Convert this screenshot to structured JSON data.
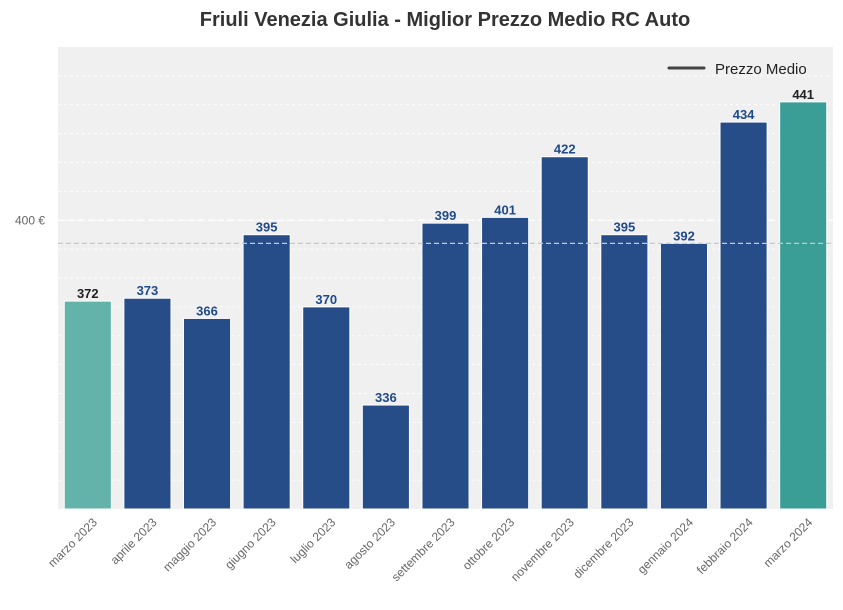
{
  "chart_data": {
    "type": "bar",
    "title": "Friuli Venezia Giulia - Miglior Prezzo Medio RC Auto",
    "categories": [
      "marzo 2023",
      "aprile 2023",
      "maggio 2023",
      "giugno 2023",
      "luglio 2023",
      "agosto 2023",
      "settembre 2023",
      "ottobre 2023",
      "novembre 2023",
      "dicembre 2023",
      "gennaio 2024",
      "febbraio 2024",
      "marzo 2024"
    ],
    "values": [
      372,
      373,
      366,
      395,
      370,
      336,
      399,
      401,
      422,
      395,
      392,
      434,
      441
    ],
    "value_labels": [
      "372",
      "373",
      "366",
      "395",
      "370",
      "336",
      "399",
      "401",
      "422",
      "395",
      "392",
      "434",
      "441"
    ],
    "ylim": [
      300,
      460
    ],
    "yticks": [
      400
    ],
    "ytick_labels": [
      "400 €"
    ],
    "average": 392,
    "legend": {
      "label": "Prezzo Medio",
      "position": "top-right"
    },
    "grid": true,
    "colors": {
      "default": "#274d89",
      "first": "#63b3ab",
      "last": "#3a9e97",
      "label_default": "#1f4a8a",
      "label_highlight": "#222222",
      "background": "#f0f0f0",
      "average_line": "#c8c8c8"
    }
  }
}
